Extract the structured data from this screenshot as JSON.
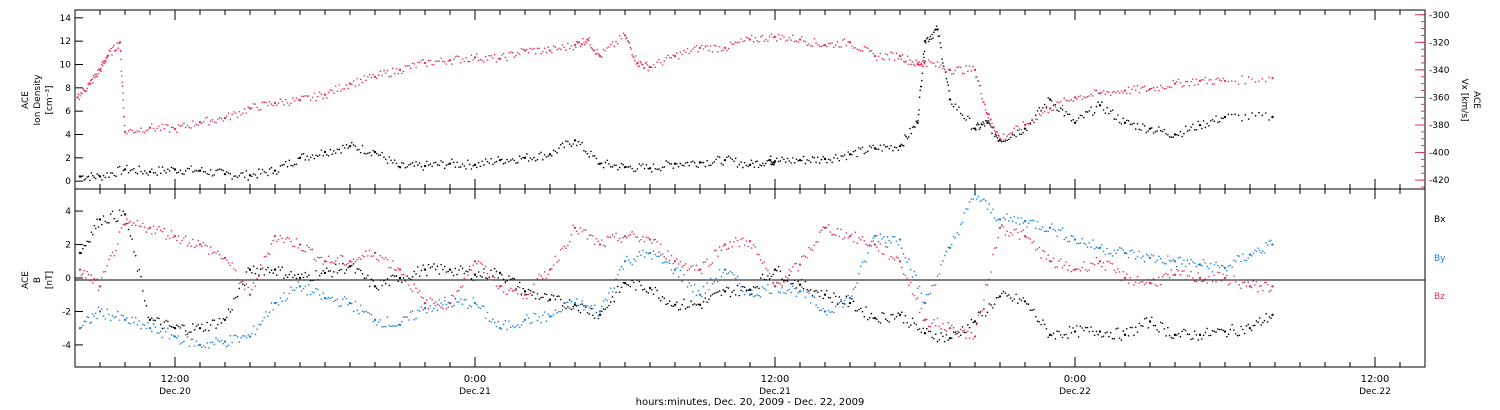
{
  "colors": {
    "density": "#000000",
    "vx": "#e0335f",
    "bx": "#000000",
    "by": "#1f80dd",
    "bz": "#e0335f",
    "axis": "#000000"
  },
  "xaxis": {
    "ticks": [
      {
        "time": "12:00",
        "day": "Dec.20",
        "hour": 12
      },
      {
        "time": "0:00",
        "day": "Dec.21",
        "hour": 24
      },
      {
        "time": "12:00",
        "day": "Dec.21",
        "hour": 36
      },
      {
        "time": "0:00",
        "day": "Dec.22",
        "hour": 48
      },
      {
        "time": "12:00",
        "day": "Dec.22",
        "hour": 60
      }
    ],
    "label": "hours:minutes, Dec. 20, 2009 - Dec. 22, 2009"
  },
  "chart_data": [
    {
      "type": "scatter",
      "panel": "top",
      "x_unit": "hours since Dec. 20, 2009 00:00",
      "xlim": [
        8,
        62
      ],
      "ylabel": [
        "ACE",
        "Ion Density",
        "[cm⁻³]"
      ],
      "ylim": [
        -0.5,
        14.5
      ],
      "yticks": [
        0,
        2,
        4,
        6,
        8,
        10,
        12,
        14
      ],
      "y2label": [
        "ACE",
        "Vx [km/s]"
      ],
      "y2lim": [
        -425,
        -298
      ],
      "y2ticks": [
        -300,
        -320,
        -340,
        -360,
        -380,
        -400,
        -420
      ],
      "series": [
        {
          "key": "density",
          "x": [
            8.2,
            9,
            10,
            11,
            12,
            13,
            14,
            15,
            16,
            17,
            18,
            19,
            20,
            21,
            22,
            23,
            24,
            25,
            26,
            27,
            28,
            29,
            30,
            31,
            32,
            33,
            34,
            35,
            35.8,
            36,
            37,
            38,
            39,
            40,
            41,
            41.7,
            42,
            42.5,
            43,
            44,
            44.5,
            45,
            46,
            47,
            48,
            49,
            50,
            51,
            52,
            53,
            54,
            55.9
          ],
          "y": [
            0.4,
            0.4,
            1,
            0.8,
            1,
            0.9,
            0.6,
            0.5,
            0.9,
            2,
            2.5,
            3,
            2.5,
            1.2,
            1.3,
            1.5,
            1.4,
            1.8,
            2,
            2.3,
            3.5,
            1.5,
            1.2,
            1.1,
            1.5,
            1.6,
            1.8,
            1.4,
            1.8,
            1.7,
            1.8,
            1.9,
            2.3,
            2.8,
            3,
            5,
            12,
            13,
            7,
            4.5,
            5,
            3.5,
            4.5,
            7,
            5,
            6.5,
            5,
            4.5,
            4,
            4.8,
            5.5,
            5.5
          ]
        },
        {
          "key": "vx",
          "x": [
            8.1,
            8.6,
            9,
            9.3,
            9.8,
            10,
            11,
            12,
            13,
            14,
            15,
            16,
            17,
            18,
            19,
            20,
            21,
            22,
            23,
            24,
            25,
            26,
            27,
            28,
            28.5,
            29,
            30,
            30.5,
            31,
            32,
            33,
            34,
            35,
            36,
            37,
            38,
            39,
            40,
            41,
            41.7,
            42,
            43,
            44,
            44.5,
            45,
            46,
            47,
            48,
            49,
            50,
            51,
            52,
            53,
            54,
            55.9
          ],
          "y": [
            -360,
            -350,
            -340,
            -330,
            -320,
            -385,
            -382,
            -383,
            -378,
            -375,
            -368,
            -364,
            -362,
            -358,
            -350,
            -345,
            -340,
            -335,
            -333,
            -331,
            -332,
            -326,
            -326,
            -322,
            -318,
            -330,
            -315,
            -335,
            -338,
            -330,
            -324,
            -324,
            -318,
            -316,
            -318,
            -322,
            -320,
            -330,
            -330,
            -336,
            -334,
            -340,
            -340,
            -372,
            -390,
            -380,
            -368,
            -360,
            -357,
            -355,
            -354,
            -350,
            -348,
            -348,
            -346
          ]
        }
      ]
    },
    {
      "type": "scatter",
      "panel": "bottom",
      "x_unit": "hours since Dec. 20, 2009 00:00",
      "xlim": [
        8,
        62
      ],
      "ylabel": [
        "ACE",
        "B",
        "[nT]"
      ],
      "ylim": [
        -5.2,
        5.2
      ],
      "yticks": [
        -4,
        -2,
        0,
        2,
        4
      ],
      "legend": [
        "Bx",
        "By",
        "Bz"
      ],
      "series": [
        {
          "key": "bx",
          "x": [
            8.2,
            9,
            10,
            11,
            12,
            13,
            14,
            15,
            16,
            17,
            18,
            19,
            20,
            21,
            22,
            23,
            24,
            25,
            26,
            27,
            28,
            29,
            30,
            31,
            32,
            33,
            34,
            35,
            36,
            37,
            38,
            39,
            40,
            41,
            42,
            43,
            44,
            45,
            46,
            47,
            48,
            49,
            50,
            51,
            52,
            53,
            54,
            55,
            55.9
          ],
          "y": [
            1.5,
            3.5,
            3.8,
            -2.5,
            -3,
            -3,
            -2.5,
            0.5,
            0.5,
            0,
            0.3,
            0.7,
            -0.5,
            0,
            0.5,
            0.5,
            0.2,
            0.3,
            -0.8,
            -1.3,
            -1.6,
            -2.2,
            -0.3,
            -0.6,
            -1.6,
            -1.6,
            -0.8,
            -0.7,
            0.5,
            -0.4,
            -1,
            -1.5,
            -2.4,
            -2.2,
            -3.3,
            -3.6,
            -2.6,
            -1.1,
            -1.4,
            -3.4,
            -3.2,
            -3.2,
            -3.4,
            -2.6,
            -3.4,
            -3.4,
            -3.2,
            -3,
            -2.2
          ]
        },
        {
          "key": "by",
          "x": [
            8.2,
            9,
            10,
            11,
            12,
            13,
            14,
            15,
            16,
            17,
            18,
            19,
            20,
            21,
            22,
            23,
            24,
            25,
            26,
            27,
            28,
            29,
            30,
            31,
            32,
            33,
            34,
            35,
            36,
            37,
            38,
            39,
            40,
            41,
            42,
            43,
            44,
            45,
            46,
            47,
            48,
            49,
            50,
            51,
            52,
            53,
            54,
            55,
            55.9
          ],
          "y": [
            -3,
            -2,
            -2.5,
            -3,
            -3.5,
            -4,
            -3.8,
            -3.5,
            -1.5,
            -0.5,
            -1.2,
            -1.5,
            -2.5,
            -2.8,
            -1.8,
            -1.5,
            -1.5,
            -3,
            -2.5,
            -2.3,
            -1.5,
            -2,
            1,
            1.5,
            0.5,
            -1,
            0.5,
            -1,
            -0.5,
            -0.8,
            -2,
            -1.2,
            2.5,
            2.3,
            -1.5,
            1.8,
            5,
            3.5,
            3.4,
            3,
            2.3,
            1.8,
            1.5,
            1.2,
            1,
            0.8,
            0.6,
            1.4,
            2
          ]
        },
        {
          "key": "bz",
          "x": [
            8.2,
            9,
            10,
            11,
            12,
            13,
            14,
            15,
            16,
            17,
            18,
            19,
            20,
            21,
            22,
            23,
            24,
            25,
            26,
            27,
            28,
            29,
            30,
            31,
            32,
            33,
            34,
            35,
            36,
            37,
            38,
            39,
            40,
            41,
            42,
            43,
            44,
            45,
            46,
            47,
            48,
            49,
            50,
            51,
            52,
            53,
            54,
            55,
            55.9
          ],
          "y": [
            0.5,
            -0.5,
            3.2,
            3,
            2.5,
            2,
            1.2,
            -1,
            2.5,
            2,
            1,
            1,
            1.5,
            0.5,
            -1.5,
            -1.5,
            1,
            -0.5,
            -1,
            0.5,
            3,
            2,
            2.5,
            2.3,
            1,
            0.5,
            2,
            2.2,
            -0.5,
            0.8,
            3,
            2.5,
            2,
            1,
            -2.5,
            -3,
            -3.5,
            3,
            2.5,
            1,
            0.5,
            1,
            0,
            -0.3,
            0.2,
            0,
            0,
            -0.5,
            -0.5
          ]
        }
      ]
    }
  ]
}
